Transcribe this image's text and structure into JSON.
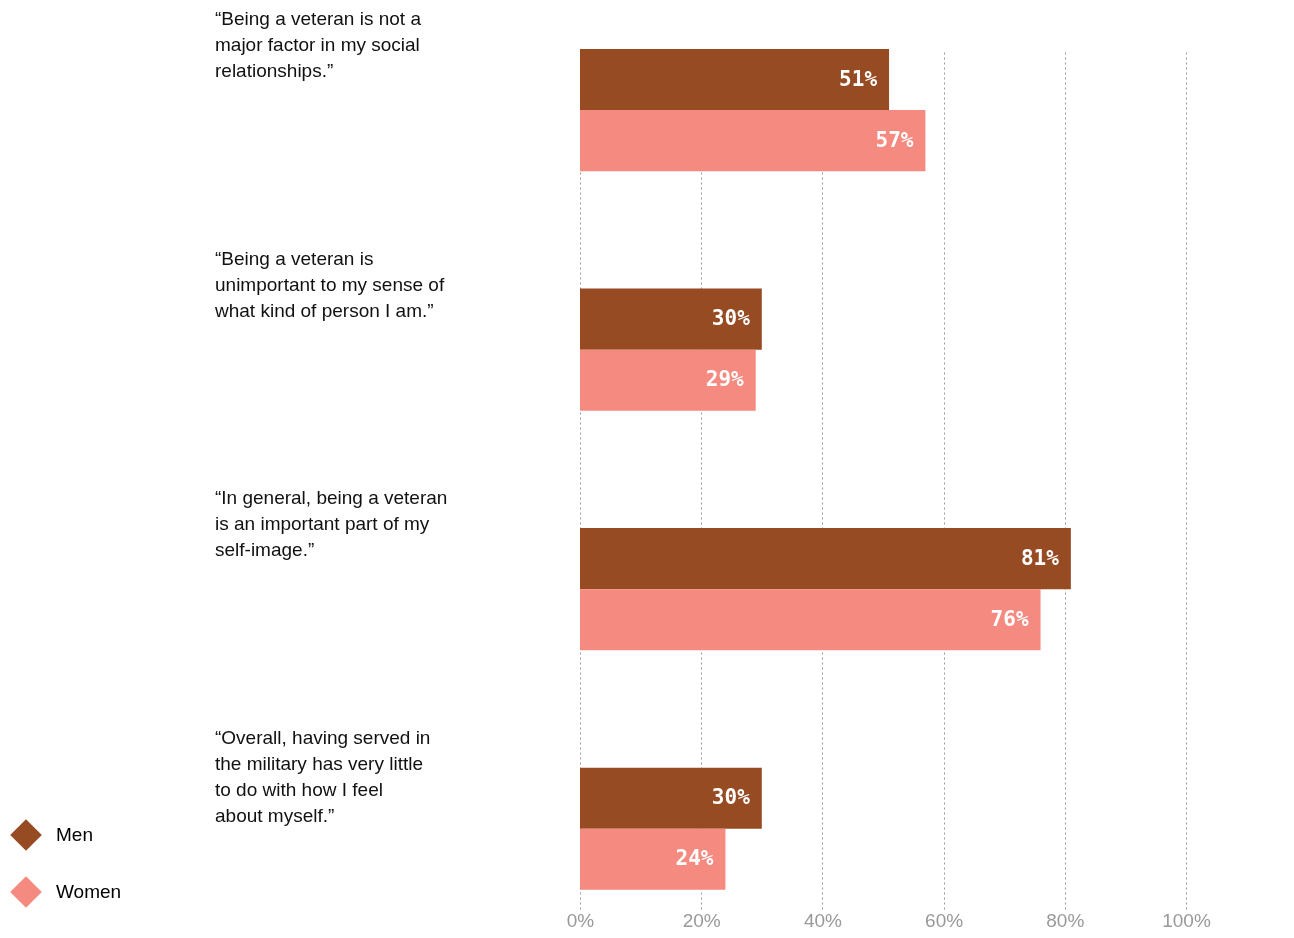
{
  "chart_data": {
    "type": "bar",
    "orientation": "horizontal",
    "categories": [
      "“Being a veteran is not a\nmajor factor in my social\nrelationships.”",
      "“Being a veteran is\nunimportant to my sense of\nwhat kind of person I am.”",
      "“In general, being a veteran\nis an important part of my\nself-image.”",
      "“Overall, having served in\nthe military has very little\nto do with how I feel\nabout myself.”"
    ],
    "series": [
      {
        "name": "Men",
        "color": "#964b23",
        "values": [
          51,
          30,
          81,
          30
        ],
        "value_labels": [
          "51%",
          "30%",
          "81%",
          "30%"
        ]
      },
      {
        "name": "Women",
        "color": "#f58a80",
        "values": [
          57,
          29,
          76,
          24
        ],
        "value_labels": [
          "57%",
          "29%",
          "76%",
          "24%"
        ]
      }
    ],
    "xlim": [
      0,
      100
    ],
    "xticks": [
      {
        "value": 0,
        "label": "0%"
      },
      {
        "value": 20,
        "label": "20%"
      },
      {
        "value": 40,
        "label": "40%"
      },
      {
        "value": 60,
        "label": "60%"
      },
      {
        "value": 80,
        "label": "80%"
      },
      {
        "value": 100,
        "label": "100%"
      }
    ],
    "grid": "x",
    "legend": "bottom left"
  }
}
